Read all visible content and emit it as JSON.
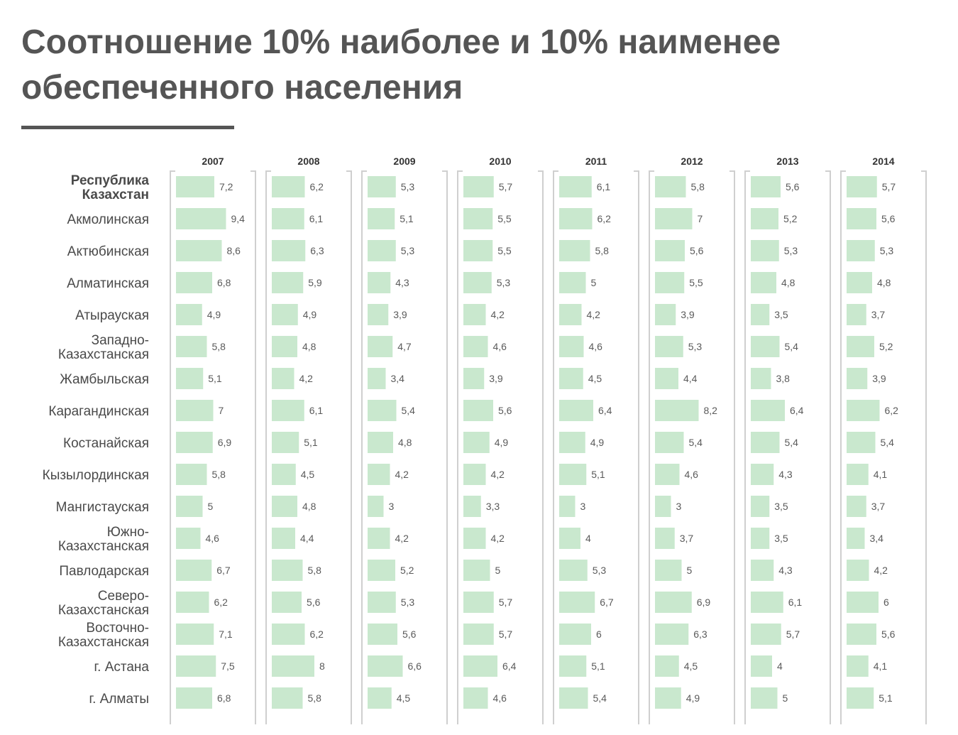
{
  "title": "Соотношение 10% наиболее и 10% наименее обеспеченного населения",
  "colors": {
    "bar": "#c9e8ce",
    "bracket": "#cfcfcf",
    "title": "#555555",
    "text": "#4a4a4a"
  },
  "chart_data": {
    "type": "bar",
    "title": "Соотношение 10% наиболее и 10% наименее обеспеченного населения",
    "years": [
      "2007",
      "2008",
      "2009",
      "2010",
      "2011",
      "2012",
      "2013",
      "2014"
    ],
    "regions": [
      [
        "Республика",
        "Казахстан"
      ],
      [
        "Акмолинская"
      ],
      [
        "Актюбинская"
      ],
      [
        "Алматинская"
      ],
      [
        "Атырауская"
      ],
      [
        "Западно-",
        "Казахстанская"
      ],
      [
        "Жамбыльская"
      ],
      [
        "Карагандинская"
      ],
      [
        "Костанайская"
      ],
      [
        "Кызылординская"
      ],
      [
        "Мангистауская"
      ],
      [
        "Южно-",
        "Казахстанская"
      ],
      [
        "Павлодарская"
      ],
      [
        "Северо-",
        "Казахстанская"
      ],
      [
        "Восточно-",
        "Казахстанская"
      ],
      [
        "г. Астана"
      ],
      [
        "г. Алматы"
      ]
    ],
    "highlight_row": 0,
    "values": [
      [
        7.2,
        6.2,
        5.3,
        5.7,
        6.1,
        5.8,
        5.6,
        5.7
      ],
      [
        9.4,
        6.1,
        5.1,
        5.5,
        6.2,
        7,
        5.2,
        5.6
      ],
      [
        8.6,
        6.3,
        5.3,
        5.5,
        5.8,
        5.6,
        5.3,
        5.3
      ],
      [
        6.8,
        5.9,
        4.3,
        5.3,
        5,
        5.5,
        4.8,
        4.8
      ],
      [
        4.9,
        4.9,
        3.9,
        4.2,
        4.2,
        3.9,
        3.5,
        3.7
      ],
      [
        5.8,
        4.8,
        4.7,
        4.6,
        4.6,
        5.3,
        5.4,
        5.2
      ],
      [
        5.1,
        4.2,
        3.4,
        3.9,
        4.5,
        4.4,
        3.8,
        3.9
      ],
      [
        7,
        6.1,
        5.4,
        5.6,
        6.4,
        8.2,
        6.4,
        6.2
      ],
      [
        6.9,
        5.1,
        4.8,
        4.9,
        4.9,
        5.4,
        5.4,
        5.4
      ],
      [
        5.8,
        4.5,
        4.2,
        4.2,
        5.1,
        4.6,
        4.3,
        4.1
      ],
      [
        5,
        4.8,
        3,
        3.3,
        3,
        3,
        3.5,
        3.7
      ],
      [
        4.6,
        4.4,
        4.2,
        4.2,
        4,
        3.7,
        3.5,
        3.4
      ],
      [
        6.7,
        5.8,
        5.2,
        5,
        5.3,
        5,
        4.3,
        4.2
      ],
      [
        6.2,
        5.6,
        5.3,
        5.7,
        6.7,
        6.9,
        6.1,
        6
      ],
      [
        7.1,
        6.2,
        5.6,
        5.7,
        6,
        6.3,
        5.7,
        5.6
      ],
      [
        7.5,
        8,
        6.6,
        6.4,
        5.1,
        4.5,
        4,
        4.1
      ],
      [
        6.8,
        5.8,
        4.5,
        4.6,
        5.4,
        4.9,
        5,
        5.1
      ]
    ]
  }
}
